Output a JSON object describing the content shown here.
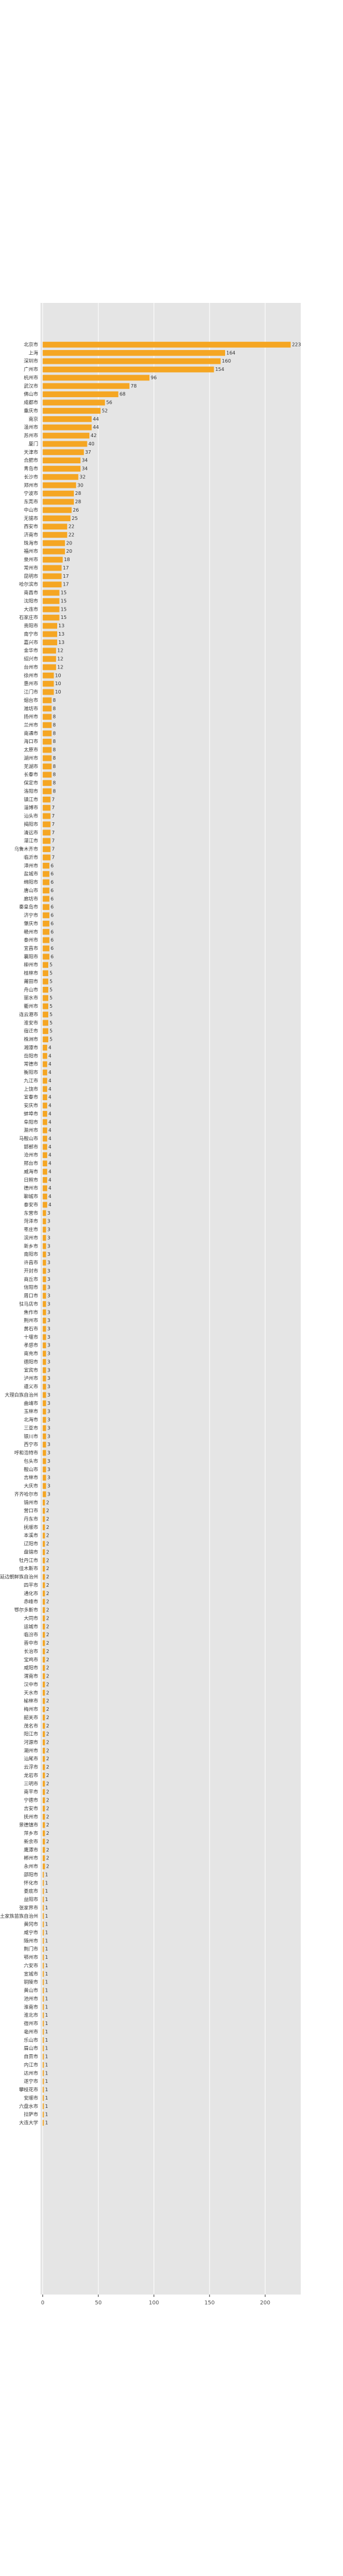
{
  "chart_data": {
    "type": "barh",
    "color": "#F5A623",
    "grid": true,
    "xlim": [
      -2,
      232
    ],
    "xticks": [
      0,
      50,
      100,
      150,
      200
    ],
    "categories": [
      "北京市",
      "上海",
      "深圳市",
      "广州市",
      "杭州市",
      "武汉市",
      "佛山市",
      "成都市",
      "重庆市",
      "南京",
      "温州市",
      "苏州市",
      "厦门",
      "天津市",
      "合肥市",
      "青岛市",
      "长沙市",
      "郑州市",
      "宁波市",
      "东莞市",
      "中山市",
      "无锡市",
      "西安市",
      "济南市",
      "珠海市",
      "福州市",
      "泉州市",
      "常州市",
      "昆明市",
      "哈尔滨市",
      "南昌市",
      "沈阳市",
      "大连市",
      "石家庄市",
      "贵阳市",
      "南宁市",
      "嘉兴市",
      "金华市",
      "绍兴市",
      "台州市",
      "徐州市",
      "惠州市",
      "江门市",
      "烟台市",
      "潍坊市",
      "扬州市",
      "兰州市",
      "南通市",
      "海口市",
      "太原市",
      "湖州市",
      "芜湖市",
      "长春市",
      "保定市",
      "洛阳市",
      "镇江市",
      "淄博市",
      "汕头市",
      "揭阳市",
      "清远市",
      "湛江市",
      "乌鲁木齐市",
      "临沂市",
      "漳州市",
      "盐城市",
      "绵阳市",
      "唐山市",
      "廊坊市",
      "秦皇岛市",
      "济宁市",
      "肇庆市",
      "赣州市",
      "泰州市",
      "宜昌市",
      "襄阳市",
      "柳州市",
      "桂林市",
      "莆田市",
      "舟山市",
      "丽水市",
      "衢州市",
      "连云港市",
      "淮安市",
      "宿迁市",
      "株洲市",
      "湘潭市",
      "岳阳市",
      "常德市",
      "衡阳市",
      "九江市",
      "上饶市",
      "宜春市",
      "安庆市",
      "蚌埠市",
      "阜阳市",
      "滁州市",
      "马鞍山市",
      "邯郸市",
      "沧州市",
      "邢台市",
      "威海市",
      "日照市",
      "德州市",
      "聊城市",
      "泰安市",
      "东营市",
      "菏泽市",
      "枣庄市",
      "滨州市",
      "新乡市",
      "南阳市",
      "许昌市",
      "开封市",
      "商丘市",
      "信阳市",
      "周口市",
      "驻马店市",
      "焦作市",
      "荆州市",
      "黄石市",
      "十堰市",
      "孝感市",
      "南充市",
      "德阳市",
      "宜宾市",
      "泸州市",
      "遵义市",
      "大理白族自治州",
      "曲靖市",
      "玉林市",
      "北海市",
      "三亚市",
      "银川市",
      "西宁市",
      "呼和浩特市",
      "包头市",
      "鞍山市",
      "吉林市",
      "大庆市",
      "齐齐哈尔市",
      "锦州市",
      "营口市",
      "丹东市",
      "抚顺市",
      "本溪市",
      "辽阳市",
      "盘锦市",
      "牡丹江市",
      "佳木斯市",
      "延边朝鲜族自治州",
      "四平市",
      "通化市",
      "赤峰市",
      "鄂尔多斯市",
      "大同市",
      "运城市",
      "临汾市",
      "晋中市",
      "长治市",
      "宝鸡市",
      "咸阳市",
      "渭南市",
      "汉中市",
      "天水市",
      "榆林市",
      "梅州市",
      "韶关市",
      "茂名市",
      "阳江市",
      "河源市",
      "潮州市",
      "汕尾市",
      "云浮市",
      "龙岩市",
      "三明市",
      "南平市",
      "宁德市",
      "吉安市",
      "抚州市",
      "景德镇市",
      "萍乡市",
      "新余市",
      "鹰潭市",
      "郴州市",
      "永州市",
      "邵阳市",
      "怀化市",
      "娄底市",
      "益阳市",
      "张家界市",
      "恩施土家族苗族自治州",
      "黄冈市",
      "咸宁市",
      "随州市",
      "荆门市",
      "鄂州市",
      "六安市",
      "宣城市",
      "铜陵市",
      "黄山市",
      "池州市",
      "淮南市",
      "淮北市",
      "宿州市",
      "亳州市",
      "乐山市",
      "眉山市",
      "自贡市",
      "内江市",
      "达州市",
      "遂宁市",
      "攀枝花市",
      "安顺市",
      "六盘水市",
      "拉萨市",
      "大连大学"
    ],
    "values": [
      223,
      164,
      160,
      154,
      96,
      78,
      68,
      56,
      52,
      44,
      44,
      42,
      40,
      37,
      34,
      34,
      32,
      30,
      28,
      28,
      26,
      25,
      22,
      22,
      20,
      20,
      18,
      17,
      17,
      17,
      15,
      15,
      15,
      15,
      13,
      13,
      13,
      12,
      12,
      12,
      10,
      10,
      10,
      8,
      8,
      8,
      8,
      8,
      8,
      8,
      8,
      8,
      8,
      8,
      8,
      7,
      7,
      7,
      7,
      7,
      7,
      7,
      7,
      6,
      6,
      6,
      6,
      6,
      6,
      6,
      6,
      6,
      6,
      6,
      6,
      5,
      5,
      5,
      5,
      5,
      5,
      5,
      5,
      5,
      5,
      4,
      4,
      4,
      4,
      4,
      4,
      4,
      4,
      4,
      4,
      4,
      4,
      4,
      4,
      4,
      4,
      4,
      4,
      4,
      4,
      3,
      3,
      3,
      3,
      3,
      3,
      3,
      3,
      3,
      3,
      3,
      3,
      3,
      3,
      3,
      3,
      3,
      3,
      3,
      3,
      3,
      3,
      3,
      3,
      3,
      3,
      3,
      3,
      3,
      3,
      3,
      3,
      3,
      3,
      3,
      2,
      2,
      2,
      2,
      2,
      2,
      2,
      2,
      2,
      2,
      2,
      2,
      2,
      2,
      2,
      2,
      2,
      2,
      2,
      2,
      2,
      2,
      2,
      2,
      2,
      2,
      2,
      2,
      2,
      2,
      2,
      2,
      2,
      2,
      2,
      2,
      2,
      2,
      2,
      2,
      2,
      2,
      2,
      2,
      2,
      1,
      1,
      1,
      1,
      1,
      1,
      1,
      1,
      1,
      1,
      1,
      1,
      1,
      1,
      1,
      1,
      1,
      1,
      1,
      1,
      1,
      1,
      1,
      1,
      1,
      1,
      1,
      1,
      1,
      1,
      1
    ]
  }
}
